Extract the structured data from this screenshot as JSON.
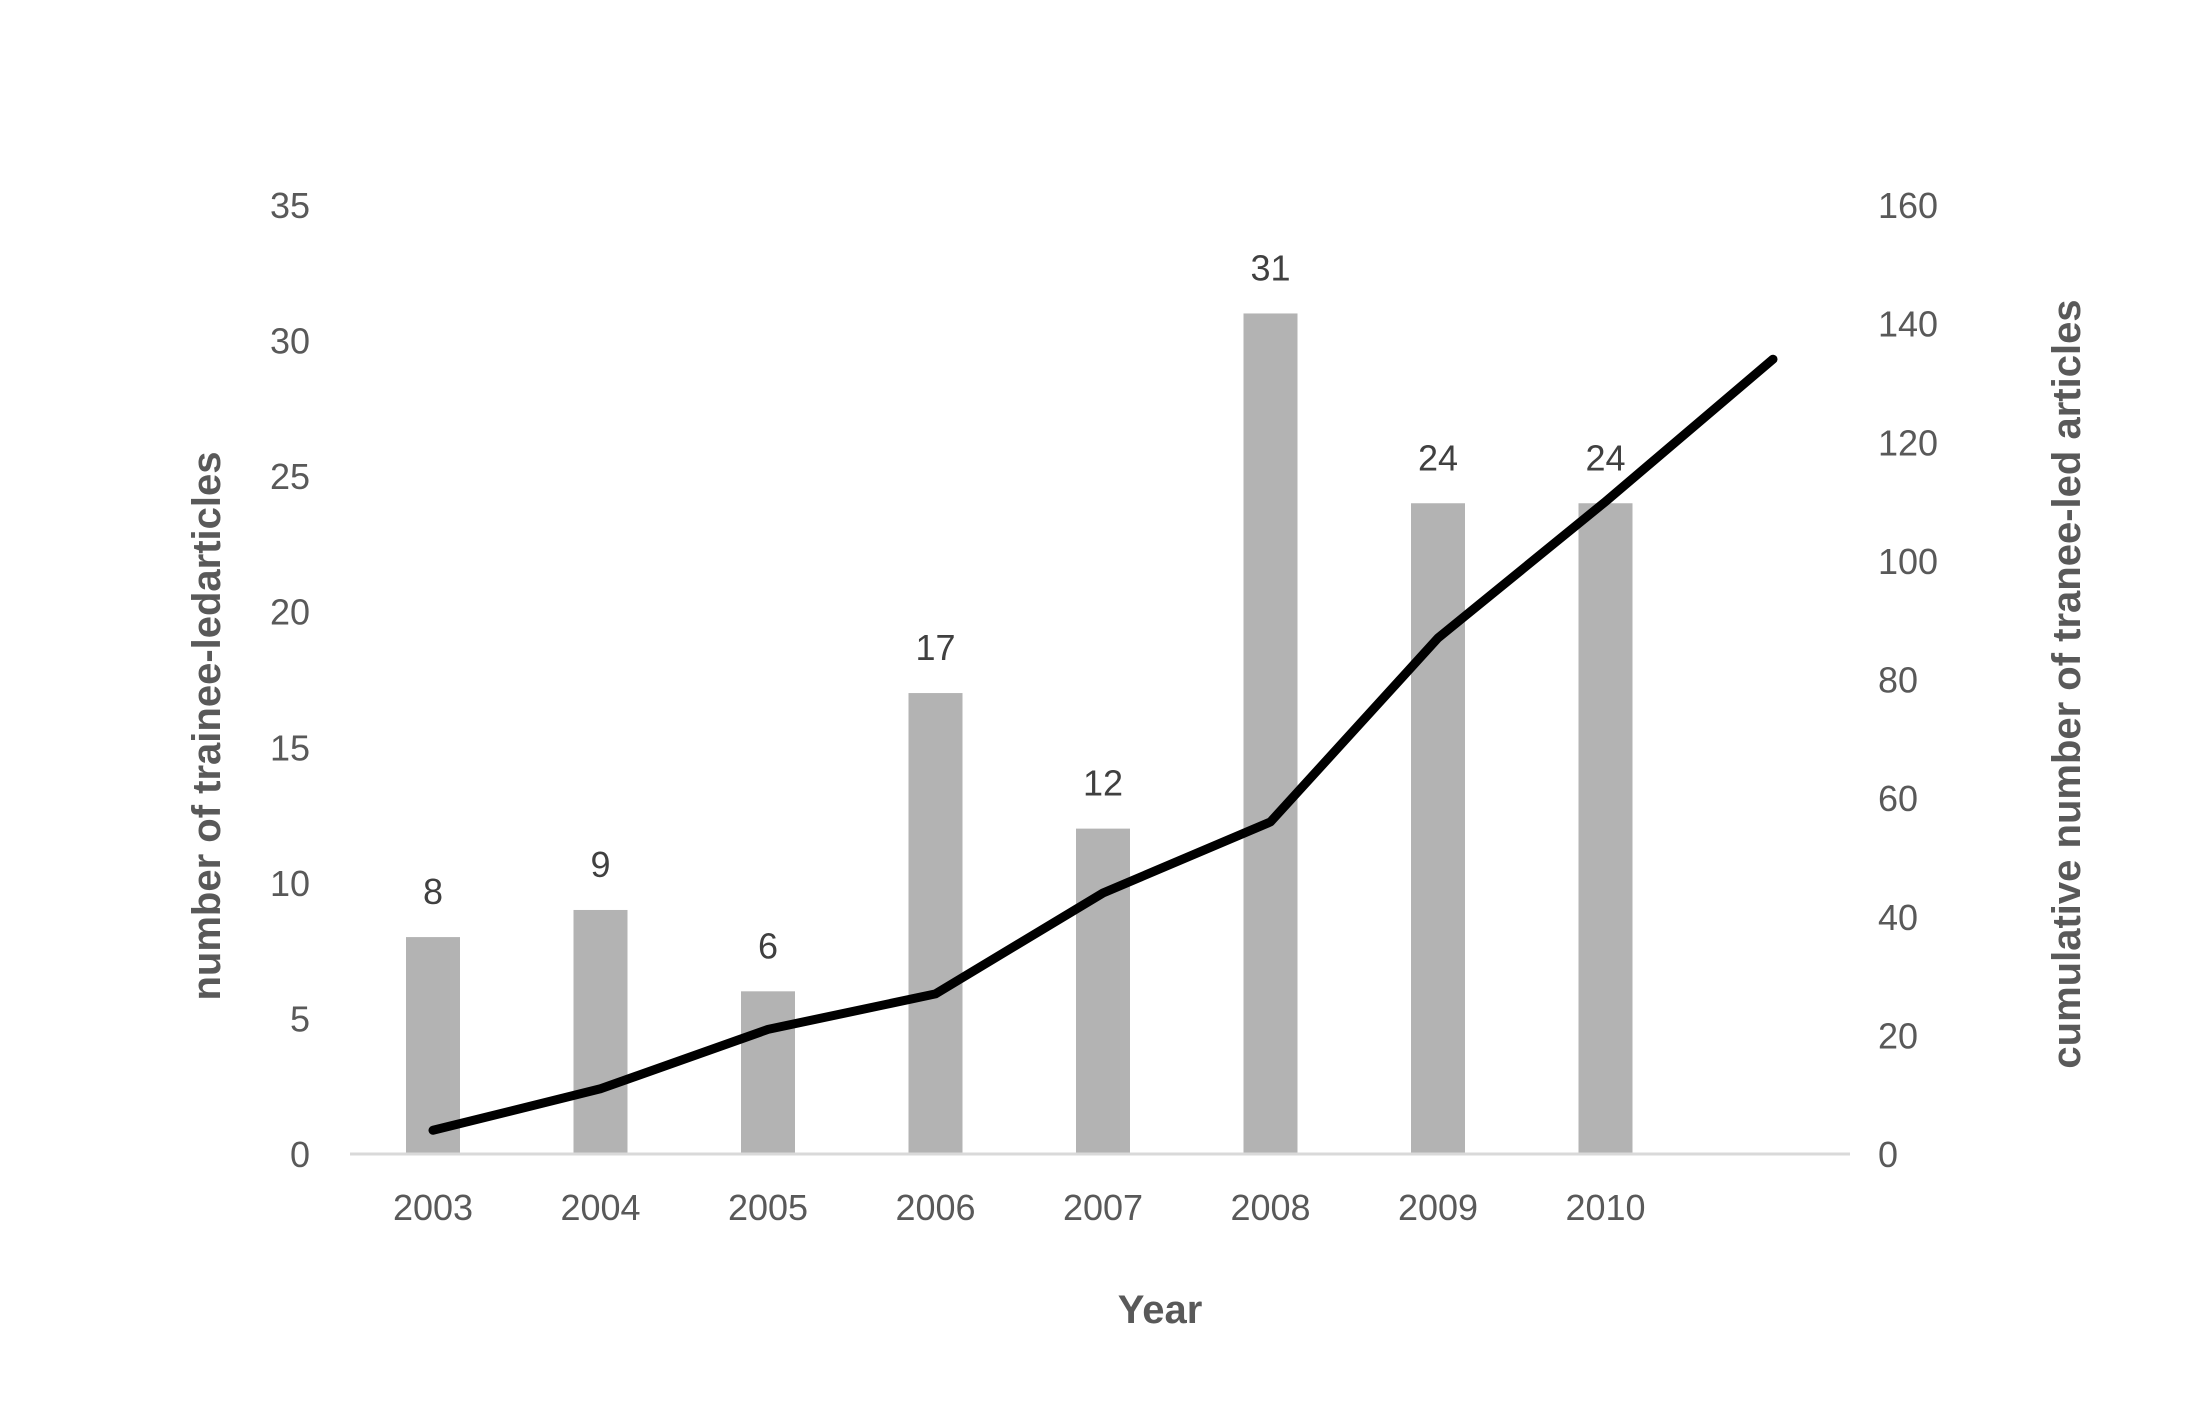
{
  "chart_data": {
    "type": "bar",
    "categories": [
      "2003",
      "2004",
      "2005",
      "2006",
      "2007",
      "2008",
      "2009",
      "2010"
    ],
    "series": [
      {
        "type": "bar",
        "axis": "left",
        "values": [
          8,
          9,
          6,
          17,
          12,
          31,
          24,
          24
        ],
        "color": "#b3b3b3",
        "data_labels": [
          "8",
          "9",
          "6",
          "17",
          "12",
          "31",
          "24",
          "24"
        ]
      },
      {
        "type": "line",
        "axis": "right",
        "x": [
          "2003",
          "2004",
          "2005",
          "2006",
          "2007",
          "2008",
          "2009",
          "2010",
          "2011"
        ],
        "values": [
          4,
          11,
          21,
          27,
          44,
          56,
          87,
          110,
          134
        ],
        "color": "#000000"
      }
    ],
    "title": "",
    "xlabel": "Year",
    "ylabel": "number of trainee-ledarticles",
    "y2label": "cumulative number of tranee-led articles",
    "ylim": [
      0,
      35
    ],
    "y2lim": [
      0,
      160
    ],
    "yticks": [
      "0",
      "5",
      "10",
      "15",
      "20",
      "25",
      "30",
      "35"
    ],
    "y2ticks": [
      "0",
      "20",
      "40",
      "60",
      "80",
      "100",
      "120",
      "140",
      "160"
    ],
    "grid": false,
    "legend": "none"
  }
}
